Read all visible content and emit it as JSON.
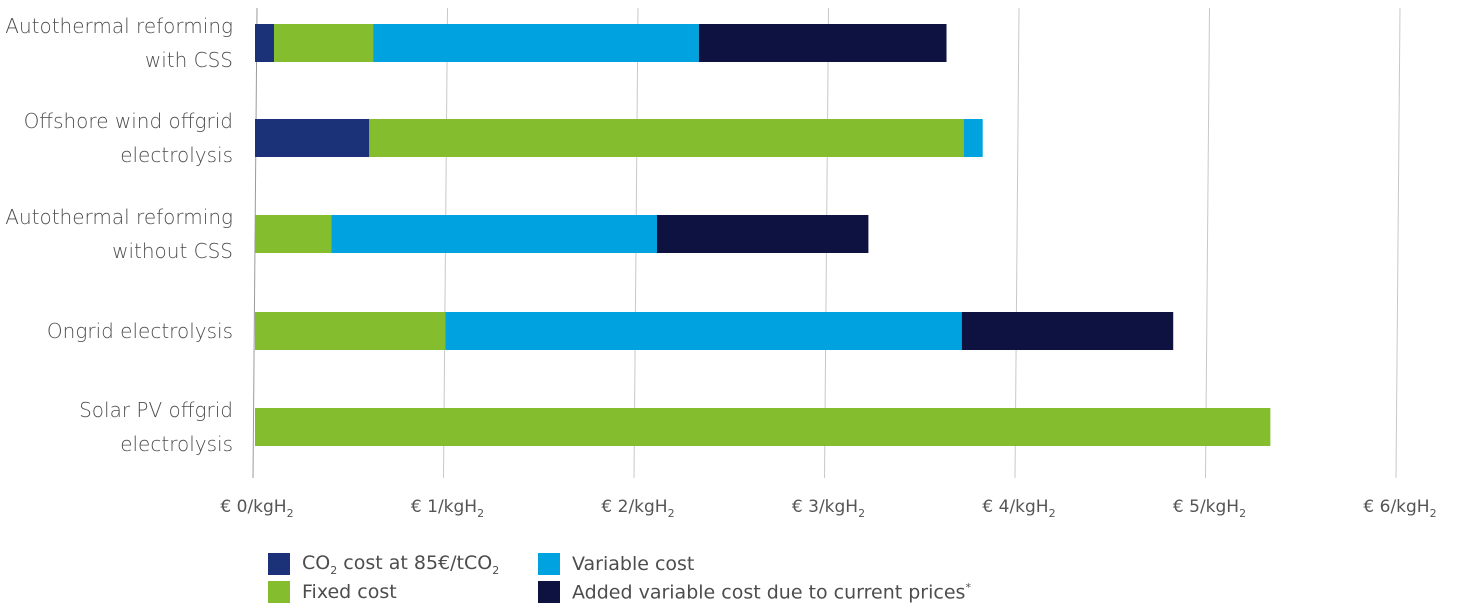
{
  "chart_data": {
    "type": "bar",
    "orientation": "horizontal",
    "stacked": true,
    "categories": [
      [
        "Autothermal reforming",
        "with CSS"
      ],
      [
        "Offshore wind offgrid",
        "electrolysis"
      ],
      [
        "Autothermal reforming",
        "without CSS"
      ],
      [
        "Ongrid electrolysis"
      ],
      [
        "Solar PV offgrid",
        "electrolysis"
      ]
    ],
    "series": [
      {
        "name_parts": [
          "CO",
          "2",
          " cost at 85€/tCO",
          "2"
        ],
        "color": "#1b3279",
        "values": [
          0.1,
          0.6,
          0,
          0,
          0
        ]
      },
      {
        "name": "Fixed cost",
        "color": "#84bd2e",
        "values": [
          0.52,
          3.12,
          0.4,
          1.0,
          5.33
        ]
      },
      {
        "name": "Variable cost",
        "color": "#00a3e0",
        "values": [
          1.71,
          0.1,
          1.71,
          2.71,
          0
        ]
      },
      {
        "name_parts": [
          "Added variable cost due to current prices",
          "*"
        ],
        "color": "#0e1240",
        "values": [
          1.3,
          0,
          1.11,
          1.11,
          0
        ]
      }
    ],
    "xticks": [
      {
        "main": "€ 0/kgH",
        "sub": "2"
      },
      {
        "main": "€ 1/kgH",
        "sub": "2"
      },
      {
        "main": "€ 2/kgH",
        "sub": "2"
      },
      {
        "main": "€ 3/kgH",
        "sub": "2"
      },
      {
        "main": "€ 4/kgH",
        "sub": "2"
      },
      {
        "main": "€ 5/kgH",
        "sub": "2"
      },
      {
        "main": "€ 6/kgH",
        "sub": "2"
      }
    ],
    "xlim": [
      0,
      6
    ],
    "grid": true,
    "legend_position": "bottom"
  }
}
